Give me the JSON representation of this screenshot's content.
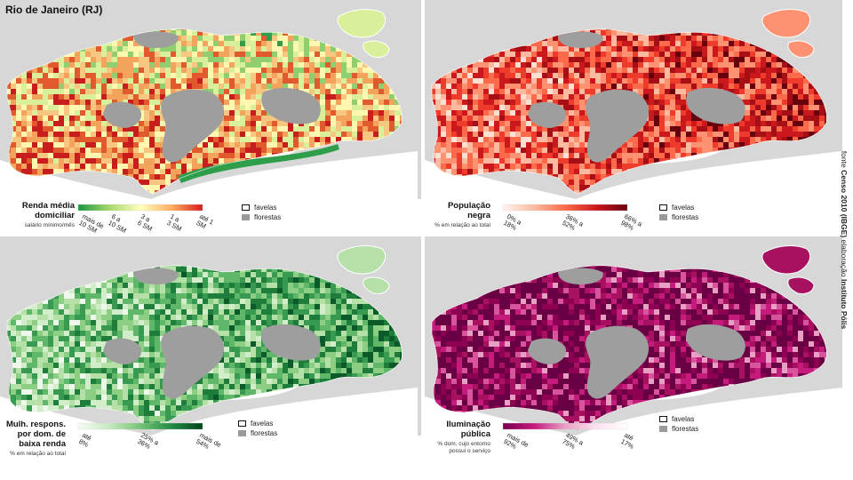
{
  "title": "Rio de Janeiro (RJ)",
  "source": {
    "prefix": "fonte",
    "dataset": "Censo 2010 (IBGE)",
    "middle": "elaboração",
    "author": "Instituto Pólis"
  },
  "key": {
    "favelas": "favelas",
    "florestas": "florestas"
  },
  "colors": {
    "land": "#d7d7d7",
    "forest": "#9e9e9e",
    "water": "#ffffff"
  },
  "panels": [
    {
      "id": "renda",
      "legend_title": [
        "Renda média",
        "domiciliar"
      ],
      "legend_subtitle": "salário mínimo/mês",
      "ramp": [
        "#1a9641",
        "#a6d96a",
        "#ffffbf",
        "#fdae61",
        "#d7191c"
      ],
      "palette": [
        "#2e9e4a",
        "#8fcf6f",
        "#d9ef9a",
        "#fff6b0",
        "#f7c680",
        "#f4a35c",
        "#e05a2e",
        "#c81d1d"
      ],
      "labels": [
        "mais de 10 SM",
        "6 a 10 SM",
        "3 a 6 SM",
        "1 a 3 SM",
        "até 1 SM"
      ]
    },
    {
      "id": "populacao",
      "legend_title": [
        "População",
        "negra"
      ],
      "legend_subtitle": "% em relação ao total",
      "ramp": [
        "#fff5f0",
        "#fcbba1",
        "#fb6a4a",
        "#cb181d",
        "#67000d"
      ],
      "palette": [
        "#fde0d2",
        "#fcbba1",
        "#fc9272",
        "#fb6a4a",
        "#ef3b2c",
        "#cb181d",
        "#a50f15",
        "#67000d"
      ],
      "labels": [
        "0% a 18%",
        "36% a 52%",
        "66% a 98%"
      ]
    },
    {
      "id": "mulheres",
      "legend_title": [
        "Mulh. respons.",
        "por dom. de",
        "baixa renda"
      ],
      "legend_subtitle": "% em relação ao total",
      "ramp": [
        "#f7fcf5",
        "#c7e9c0",
        "#74c476",
        "#238b45",
        "#00441b"
      ],
      "palette": [
        "#eef8ea",
        "#d2edc9",
        "#b5e0a8",
        "#8ccf84",
        "#5fb86a",
        "#389a50",
        "#1f7d3c",
        "#0b5a2a"
      ],
      "labels": [
        "até 8%",
        "25% a 36%",
        "mais de 54%"
      ]
    },
    {
      "id": "iluminacao",
      "legend_title": [
        "Iluminação",
        "pública"
      ],
      "legend_subtitle": "% dom. cujo entorno possui o serviço",
      "ramp": [
        "#7a0050",
        "#c51b7d",
        "#e7a0c4",
        "#fde0ef",
        "#ffffff"
      ],
      "palette": [
        "#6a0044",
        "#8e0152",
        "#a8115f",
        "#c51b7d",
        "#d8549c",
        "#e7a0c4",
        "#f1c8dd",
        "#dcb7d0"
      ],
      "labels": [
        "mais de 92%",
        "49% a 75%",
        "até 17%"
      ]
    }
  ]
}
